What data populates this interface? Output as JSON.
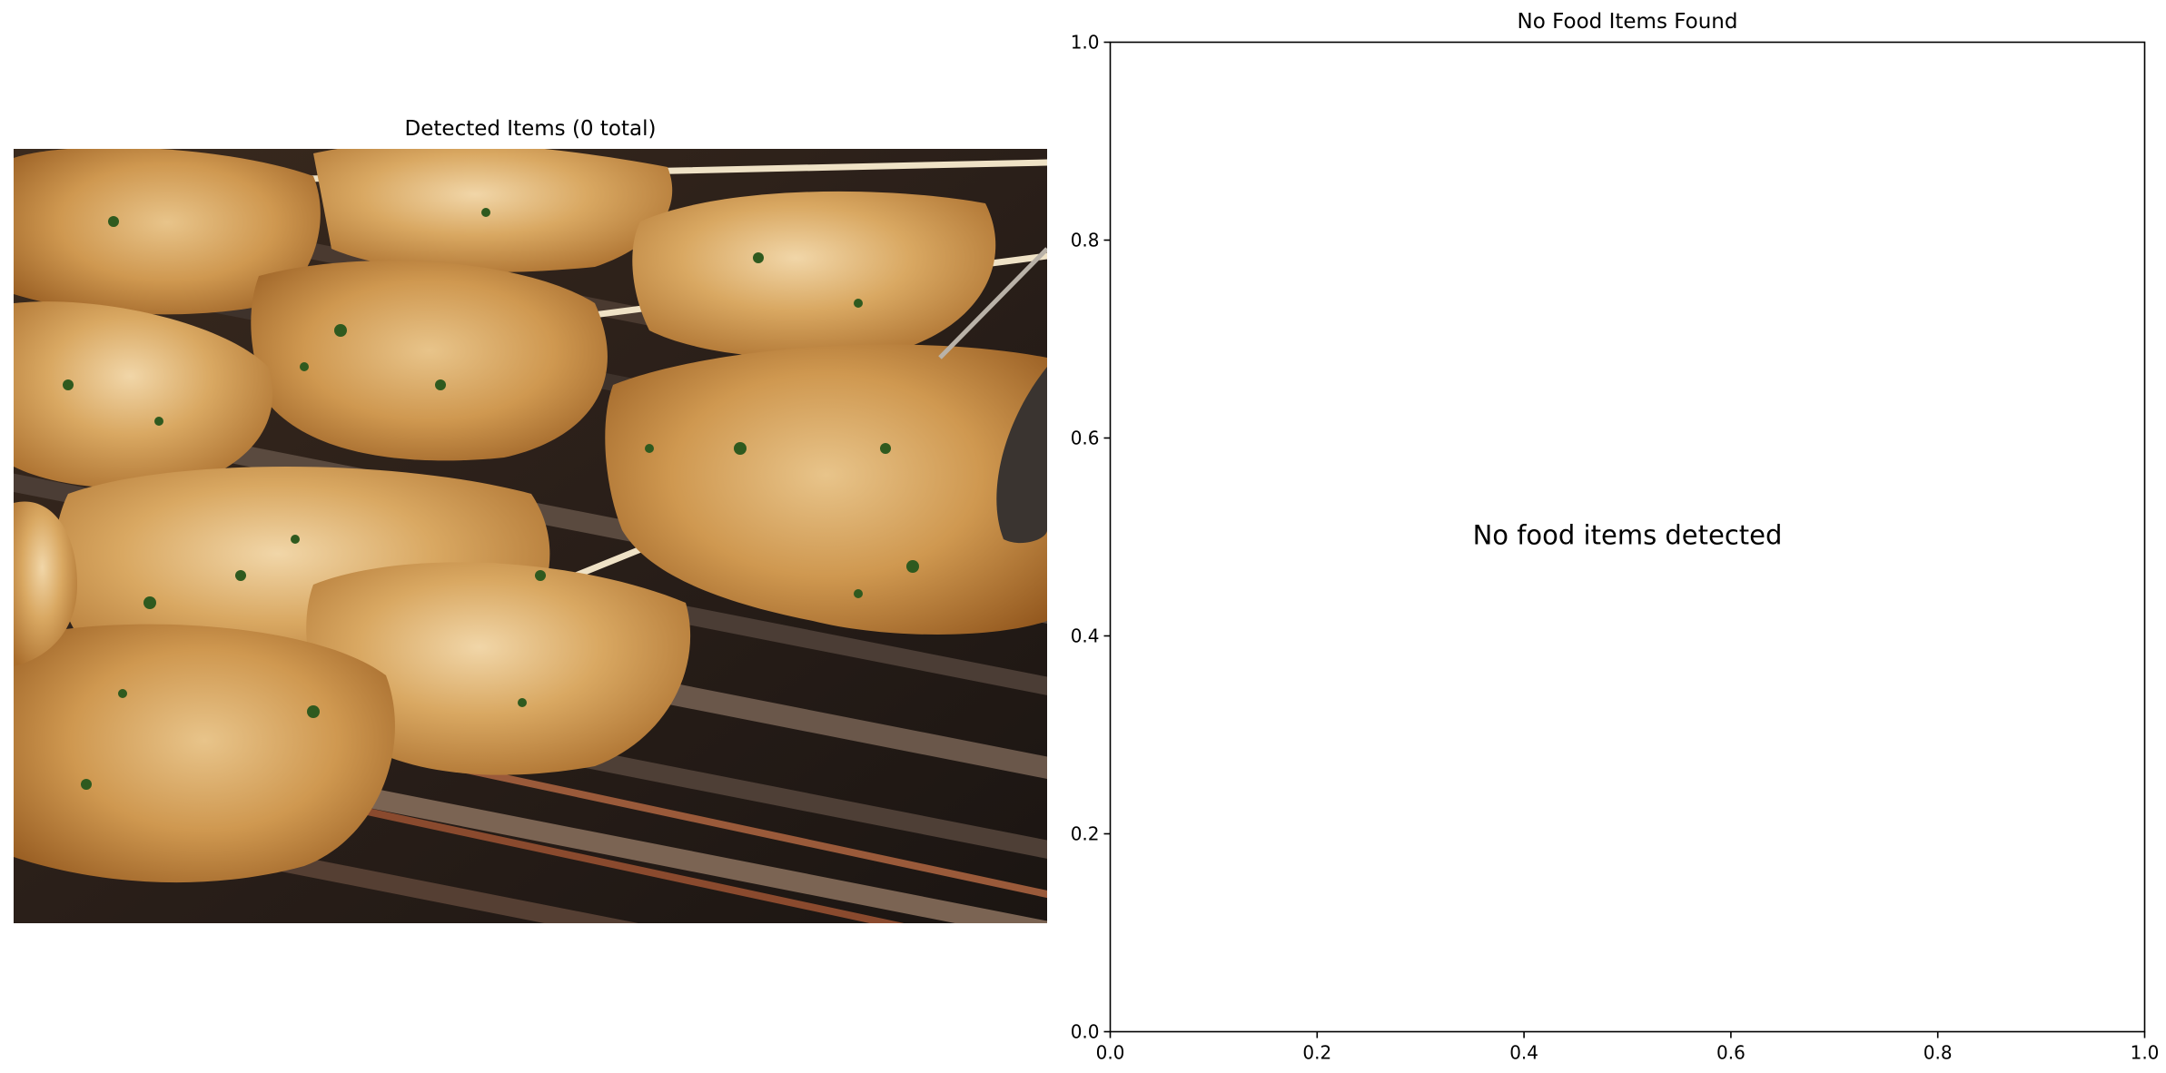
{
  "panels": {
    "left": {
      "title": "Detected Items (0 total)"
    },
    "right": {
      "title": "No Food Items Found",
      "annotation": "No food items detected"
    }
  },
  "chart_data": [
    {
      "type": "scatter",
      "title": "No Food Items Found",
      "xlabel": "",
      "ylabel": "",
      "xlim": [
        0.0,
        1.0
      ],
      "ylim": [
        0.0,
        1.0
      ],
      "x_ticks": [
        "0.0",
        "0.2",
        "0.4",
        "0.6",
        "0.8",
        "1.0"
      ],
      "y_ticks": [
        "0.0",
        "0.2",
        "0.4",
        "0.6",
        "0.8",
        "1.0"
      ],
      "series": [],
      "grid": false,
      "annotations": [
        "No food items detected"
      ]
    }
  ]
}
